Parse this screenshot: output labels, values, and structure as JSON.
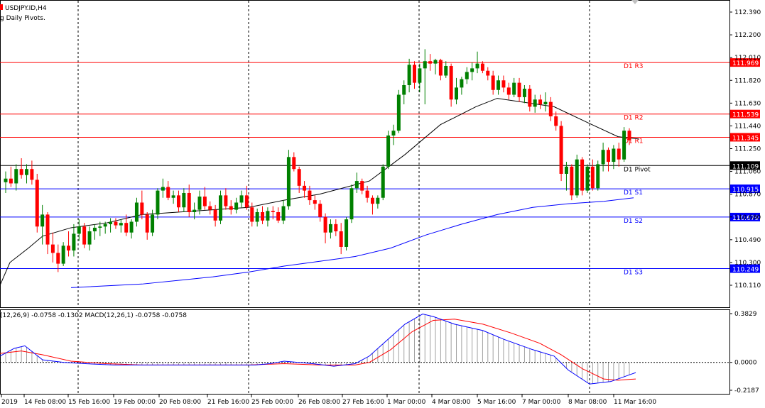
{
  "header": {
    "symbol_line": "USDJPY.ID,H4",
    "indicator_line": "g Daily Pivots."
  },
  "macd_header": "(12,26,9) -0.0758 -0.1302 MACD(12,26,1) -0.0758 -0.0758",
  "price_axis": {
    "ticks": [
      "112.390",
      "112.200",
      "112.010",
      "111.820",
      "111.630",
      "111.440",
      "111.250",
      "111.060",
      "110.870",
      "110.680",
      "110.490",
      "110.300",
      "110.110"
    ],
    "tick_values": [
      112.39,
      112.2,
      112.01,
      111.82,
      111.63,
      111.44,
      111.25,
      111.06,
      110.87,
      110.68,
      110.49,
      110.3,
      110.11
    ]
  },
  "macd_axis": {
    "ticks": [
      "0.3829",
      "0.0000",
      "-0.2187"
    ],
    "tick_values": [
      0.3829,
      0.0,
      -0.2187
    ]
  },
  "time_axis": {
    "labels": [
      "2019",
      "14 Feb 08:00",
      "15 Feb 16:00",
      "19 Feb 00:00",
      "20 Feb 08:00",
      "21 Feb 16:00",
      "25 Feb 00:00",
      "26 Feb 08:00",
      "27 Feb 16:00",
      "1 Mar 00:00",
      "4 Mar 08:00",
      "5 Mar 16:00",
      "7 Mar 00:00",
      "8 Mar 08:00",
      "11 Mar 16:00"
    ]
  },
  "colors": {
    "bull": "#008000",
    "bear": "#ff0000",
    "resistance": "#ff0000",
    "support": "#0000ff",
    "pivot": "#000000",
    "ma_slow": "#0000ff",
    "ma_fast": "#000000",
    "macd_signal": "#ff0000",
    "macd_line": "#0000ff",
    "macd_hist": "#a0a0a0",
    "grid": "#000000"
  },
  "chart_data": {
    "type": "candlestick",
    "symbol": "USDJPY.ID",
    "timeframe": "H4",
    "pivots": [
      {
        "name": "D1 R3",
        "value": 111.969,
        "tag": "111.969",
        "kind": "resistance"
      },
      {
        "name": "D1 R2",
        "value": 111.539,
        "tag": "111.539",
        "kind": "resistance"
      },
      {
        "name": "D1 R1",
        "value": 111.345,
        "tag": "111.345",
        "kind": "resistance"
      },
      {
        "name": "D1 Pivot",
        "value": 111.109,
        "tag": "111.109",
        "kind": "pivot"
      },
      {
        "name": "D1 S1",
        "value": 110.915,
        "tag": "110.915",
        "kind": "support"
      },
      {
        "name": "D1 S2",
        "value": 110.679,
        "tag": "110.679",
        "kind": "support"
      },
      {
        "name": "D1 S3",
        "value": 110.249,
        "tag": "110.249",
        "kind": "support"
      }
    ],
    "candles": [
      [
        110.97,
        111.06,
        110.88,
        111.0
      ],
      [
        111.0,
        111.1,
        110.93,
        110.96
      ],
      [
        110.96,
        111.12,
        110.9,
        111.08
      ],
      [
        111.08,
        111.17,
        111.0,
        111.03
      ],
      [
        111.03,
        111.12,
        110.96,
        111.08
      ],
      [
        111.08,
        111.15,
        110.95,
        110.99
      ],
      [
        110.99,
        111.04,
        110.55,
        110.6
      ],
      [
        110.6,
        110.78,
        110.45,
        110.7
      ],
      [
        110.7,
        110.72,
        110.37,
        110.45
      ],
      [
        110.45,
        110.55,
        110.3,
        110.38
      ],
      [
        110.38,
        110.45,
        110.22,
        110.29
      ],
      [
        110.29,
        110.47,
        110.27,
        110.44
      ],
      [
        110.44,
        110.56,
        110.35,
        110.4
      ],
      [
        110.4,
        110.62,
        110.35,
        110.54
      ],
      [
        110.54,
        110.66,
        110.48,
        110.6
      ],
      [
        110.6,
        110.63,
        110.42,
        110.45
      ],
      [
        110.45,
        110.6,
        110.4,
        110.56
      ],
      [
        110.56,
        110.62,
        110.49,
        110.59
      ],
      [
        110.59,
        110.64,
        110.52,
        110.6
      ],
      [
        110.6,
        110.64,
        110.54,
        110.62
      ],
      [
        110.62,
        110.67,
        110.55,
        110.64
      ],
      [
        110.64,
        110.67,
        110.58,
        110.61
      ],
      [
        110.61,
        110.66,
        110.55,
        110.63
      ],
      [
        110.63,
        110.7,
        110.52,
        110.55
      ],
      [
        110.55,
        110.66,
        110.5,
        110.64
      ],
      [
        110.64,
        110.84,
        110.6,
        110.8
      ],
      [
        110.8,
        110.9,
        110.66,
        110.7
      ],
      [
        110.7,
        110.72,
        110.49,
        110.55
      ],
      [
        110.55,
        110.74,
        110.52,
        110.7
      ],
      [
        110.7,
        110.92,
        110.66,
        110.9
      ],
      [
        110.9,
        111.0,
        110.84,
        110.93
      ],
      [
        110.93,
        110.98,
        110.82,
        110.84
      ],
      [
        110.84,
        110.9,
        110.79,
        110.86
      ],
      [
        110.86,
        110.9,
        110.72,
        110.76
      ],
      [
        110.76,
        110.92,
        110.72,
        110.88
      ],
      [
        110.88,
        110.95,
        110.68,
        110.72
      ],
      [
        110.72,
        110.8,
        110.66,
        110.74
      ],
      [
        110.74,
        110.9,
        110.7,
        110.85
      ],
      [
        110.85,
        110.93,
        110.74,
        110.77
      ],
      [
        110.77,
        110.81,
        110.7,
        110.74
      ],
      [
        110.74,
        110.78,
        110.6,
        110.65
      ],
      [
        110.65,
        110.9,
        110.62,
        110.86
      ],
      [
        110.86,
        110.92,
        110.74,
        110.77
      ],
      [
        110.77,
        110.82,
        110.7,
        110.74
      ],
      [
        110.74,
        110.84,
        110.71,
        110.8
      ],
      [
        110.8,
        110.9,
        110.76,
        110.86
      ],
      [
        110.86,
        110.94,
        110.74,
        110.76
      ],
      [
        110.76,
        110.8,
        110.6,
        110.64
      ],
      [
        110.64,
        110.75,
        110.6,
        110.72
      ],
      [
        110.72,
        110.77,
        110.62,
        110.65
      ],
      [
        110.65,
        110.76,
        110.6,
        110.73
      ],
      [
        110.73,
        110.77,
        110.66,
        110.72
      ],
      [
        110.72,
        110.76,
        110.63,
        110.65
      ],
      [
        110.65,
        110.82,
        110.62,
        110.77
      ],
      [
        110.77,
        111.24,
        110.74,
        111.18
      ],
      [
        111.18,
        111.22,
        111.06,
        111.08
      ],
      [
        111.08,
        111.1,
        110.88,
        110.94
      ],
      [
        110.94,
        110.98,
        110.84,
        110.9
      ],
      [
        110.9,
        110.94,
        110.78,
        110.82
      ],
      [
        110.82,
        110.86,
        110.74,
        110.79
      ],
      [
        110.79,
        110.82,
        110.64,
        110.68
      ],
      [
        110.68,
        110.71,
        110.46,
        110.55
      ],
      [
        110.55,
        110.66,
        110.5,
        110.62
      ],
      [
        110.62,
        110.66,
        110.52,
        110.56
      ],
      [
        110.56,
        110.63,
        110.37,
        110.43
      ],
      [
        110.43,
        110.68,
        110.4,
        110.66
      ],
      [
        110.66,
        110.95,
        110.63,
        110.92
      ],
      [
        110.92,
        111.05,
        110.88,
        110.98
      ],
      [
        110.98,
        111.0,
        110.87,
        110.9
      ],
      [
        110.9,
        110.94,
        110.8,
        110.84
      ],
      [
        110.84,
        110.86,
        110.7,
        110.79
      ],
      [
        110.79,
        110.86,
        110.75,
        110.84
      ],
      [
        110.84,
        111.12,
        110.82,
        111.1
      ],
      [
        111.1,
        111.4,
        111.08,
        111.36
      ],
      [
        111.36,
        111.45,
        111.28,
        111.4
      ],
      [
        111.4,
        111.74,
        111.38,
        111.7
      ],
      [
        111.7,
        111.82,
        111.62,
        111.78
      ],
      [
        111.78,
        112.0,
        111.72,
        111.95
      ],
      [
        111.95,
        111.98,
        111.75,
        111.8
      ],
      [
        111.8,
        111.96,
        111.72,
        111.92
      ],
      [
        111.92,
        112.08,
        111.62,
        111.98
      ],
      [
        111.98,
        112.04,
        111.9,
        111.96
      ],
      [
        111.96,
        112.0,
        111.87,
        111.99
      ],
      [
        111.99,
        112.0,
        111.82,
        111.86
      ],
      [
        111.86,
        111.98,
        111.84,
        111.94
      ],
      [
        111.94,
        111.96,
        111.6,
        111.66
      ],
      [
        111.66,
        111.84,
        111.62,
        111.76
      ],
      [
        111.76,
        111.85,
        111.7,
        111.83
      ],
      [
        111.83,
        111.93,
        111.79,
        111.89
      ],
      [
        111.89,
        111.97,
        111.82,
        111.92
      ],
      [
        111.92,
        112.06,
        111.88,
        111.96
      ],
      [
        111.96,
        111.98,
        111.88,
        111.9
      ],
      [
        111.9,
        111.93,
        111.82,
        111.86
      ],
      [
        111.86,
        111.9,
        111.7,
        111.74
      ],
      [
        111.74,
        111.86,
        111.7,
        111.82
      ],
      [
        111.82,
        111.86,
        111.72,
        111.76
      ],
      [
        111.76,
        111.8,
        111.66,
        111.7
      ],
      [
        111.7,
        111.84,
        111.68,
        111.8
      ],
      [
        111.8,
        111.84,
        111.64,
        111.68
      ],
      [
        111.68,
        111.78,
        111.63,
        111.75
      ],
      [
        111.75,
        111.78,
        111.56,
        111.6
      ],
      [
        111.6,
        111.7,
        111.55,
        111.66
      ],
      [
        111.66,
        111.7,
        111.58,
        111.62
      ],
      [
        111.62,
        111.72,
        111.56,
        111.64
      ],
      [
        111.64,
        111.68,
        111.48,
        111.52
      ],
      [
        111.52,
        111.56,
        111.4,
        111.44
      ],
      [
        111.44,
        111.48,
        110.98,
        111.04
      ],
      [
        111.04,
        111.14,
        110.9,
        111.1
      ],
      [
        111.1,
        111.12,
        110.82,
        110.86
      ],
      [
        110.86,
        111.2,
        110.84,
        111.16
      ],
      [
        111.16,
        111.18,
        110.86,
        110.9
      ],
      [
        110.9,
        111.12,
        110.88,
        111.1
      ],
      [
        111.1,
        111.16,
        110.9,
        110.92
      ],
      [
        110.92,
        111.15,
        110.9,
        111.12
      ],
      [
        111.12,
        111.3,
        111.06,
        111.24
      ],
      [
        111.24,
        111.26,
        111.06,
        111.14
      ],
      [
        111.14,
        111.28,
        111.08,
        111.25
      ],
      [
        111.25,
        111.3,
        111.1,
        111.16
      ],
      [
        111.16,
        111.43,
        111.14,
        111.4
      ],
      [
        111.4,
        111.42,
        111.28,
        111.32
      ]
    ],
    "ma_fast": [
      [
        110.11,
        0
      ],
      [
        110.3,
        14
      ],
      [
        110.42,
        40
      ],
      [
        110.52,
        60
      ],
      [
        110.59,
        100
      ],
      [
        110.63,
        150
      ],
      [
        110.7,
        200
      ],
      [
        110.72,
        250
      ],
      [
        110.74,
        300
      ],
      [
        110.76,
        350
      ],
      [
        110.82,
        400
      ],
      [
        110.87,
        450
      ],
      [
        110.98,
        520
      ],
      [
        111.2,
        570
      ],
      [
        111.45,
        620
      ],
      [
        111.6,
        670
      ],
      [
        111.67,
        700
      ],
      [
        111.6,
        780
      ],
      [
        111.46,
        830
      ],
      [
        111.35,
        870
      ],
      [
        111.33,
        900
      ]
    ],
    "ma_slow": [
      [
        110.09,
        100
      ],
      [
        110.12,
        200
      ],
      [
        110.18,
        300
      ],
      [
        110.22,
        350
      ],
      [
        110.27,
        400
      ],
      [
        110.31,
        450
      ],
      [
        110.35,
        500
      ],
      [
        110.42,
        550
      ],
      [
        110.53,
        600
      ],
      [
        110.62,
        650
      ],
      [
        110.7,
        700
      ],
      [
        110.76,
        750
      ],
      [
        110.79,
        800
      ],
      [
        110.81,
        850
      ],
      [
        110.84,
        892
      ]
    ],
    "macd": {
      "main_at_hist": [
        [
          0.05,
          0
        ],
        [
          0.11,
          20
        ],
        [
          0.13,
          35
        ],
        [
          0.02,
          60
        ],
        [
          0.0,
          90
        ],
        [
          -0.01,
          120
        ],
        [
          -0.02,
          160
        ],
        [
          -0.02,
          200
        ],
        [
          -0.02,
          250
        ],
        [
          -0.02,
          300
        ],
        [
          -0.02,
          340
        ],
        [
          -0.02,
          360
        ],
        [
          -0.01,
          380
        ],
        [
          0.01,
          400
        ],
        [
          -0.01,
          440
        ],
        [
          -0.03,
          470
        ],
        [
          -0.01,
          500
        ],
        [
          0.05,
          520
        ],
        [
          0.2,
          550
        ],
        [
          0.3,
          570
        ],
        [
          0.38,
          595
        ],
        [
          0.36,
          610
        ],
        [
          0.3,
          640
        ],
        [
          0.25,
          680
        ],
        [
          0.18,
          710
        ],
        [
          0.1,
          750
        ],
        [
          0.05,
          780
        ],
        [
          -0.06,
          800
        ],
        [
          -0.17,
          830
        ],
        [
          -0.15,
          860
        ],
        [
          -0.08,
          895
        ]
      ],
      "signal": [
        [
          0.07,
          0
        ],
        [
          0.09,
          30
        ],
        [
          0.06,
          60
        ],
        [
          0.01,
          100
        ],
        [
          -0.01,
          150
        ],
        [
          -0.02,
          200
        ],
        [
          -0.02,
          250
        ],
        [
          -0.02,
          300
        ],
        [
          -0.02,
          350
        ],
        [
          -0.01,
          400
        ],
        [
          -0.02,
          450
        ],
        [
          -0.02,
          500
        ],
        [
          0.0,
          520
        ],
        [
          0.1,
          550
        ],
        [
          0.24,
          580
        ],
        [
          0.33,
          610
        ],
        [
          0.34,
          640
        ],
        [
          0.3,
          680
        ],
        [
          0.23,
          720
        ],
        [
          0.15,
          760
        ],
        [
          0.06,
          790
        ],
        [
          -0.05,
          820
        ],
        [
          -0.13,
          850
        ],
        [
          -0.14,
          870
        ],
        [
          -0.13,
          895
        ]
      ]
    }
  }
}
